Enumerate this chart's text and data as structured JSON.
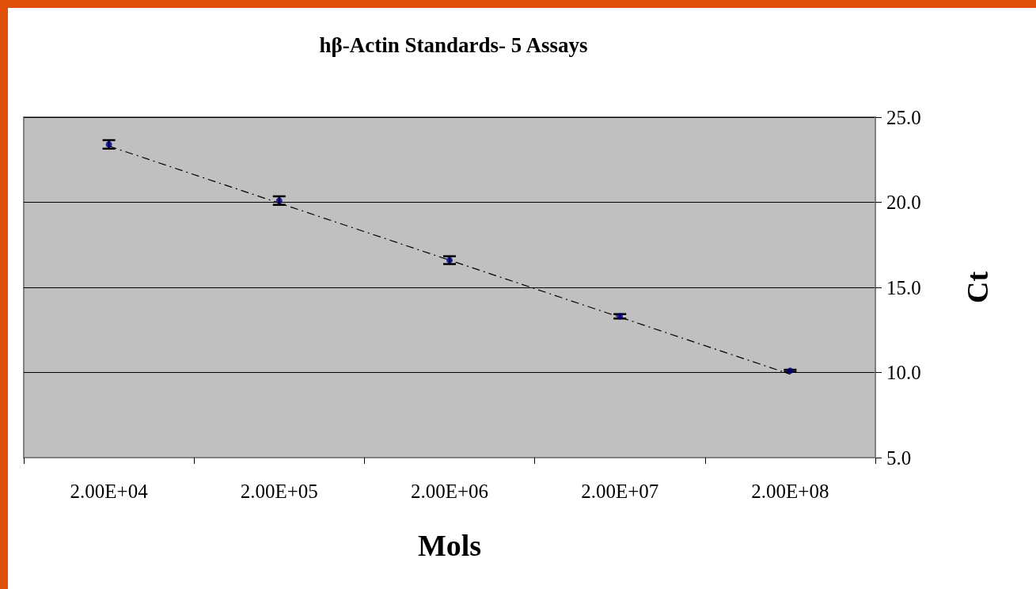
{
  "chart_data": {
    "type": "scatter",
    "title": "hβ-Actin Standards- 5 Assays",
    "xlabel": "Mols",
    "ylabel": "Ct",
    "categories": [
      "2.00E+04",
      "2.00E+05",
      "2.00E+06",
      "2.00E+07",
      "2.00E+08"
    ],
    "series": [
      {
        "color": "#000080",
        "values": [
          23.4,
          20.1,
          16.6,
          13.3,
          10.1
        ],
        "errors": [
          0.25,
          0.25,
          0.23,
          0.13,
          0.06
        ],
        "marker": "circle"
      },
      {
        "type": "line",
        "color": "#000000",
        "x": [
          "2.00E+04",
          "2.00E+08"
        ],
        "values": [
          23.3,
          9.9
        ],
        "line_style": "dashed",
        "marker": "none"
      }
    ],
    "ylim": [
      5,
      25
    ],
    "yticks": [
      {
        "value": 5,
        "label": "5.0"
      },
      {
        "value": 10,
        "label": "10.0"
      },
      {
        "value": 15,
        "label": "15.0"
      },
      {
        "value": 20,
        "label": "20.0"
      },
      {
        "value": 25,
        "label": "25.0"
      }
    ],
    "grid": "y"
  }
}
